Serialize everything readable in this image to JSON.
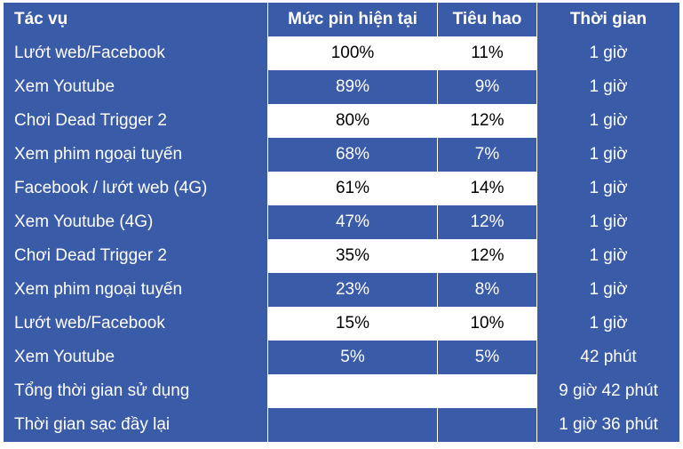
{
  "header": [
    "Tác vụ",
    "Mức pin hiện tại",
    "Tiêu hao",
    "Thời gian"
  ],
  "rows": [
    [
      "Lướt web/Facebook",
      "100%",
      "11%",
      "1 giờ"
    ],
    [
      "Xem Youtube",
      "89%",
      "9%",
      "1 giờ"
    ],
    [
      "Chơi Dead Trigger 2",
      "80%",
      "12%",
      "1 giờ"
    ],
    [
      "Xem phim ngoại tuyến",
      "68%",
      "7%",
      "1 giờ"
    ],
    [
      "Facebook / lướt web (4G)",
      "61%",
      "14%",
      "1 giờ"
    ],
    [
      "Xem Youtube (4G)",
      "47%",
      "12%",
      "1 giờ"
    ],
    [
      "Chơi Dead Trigger 2",
      "35%",
      "12%",
      "1 giờ"
    ],
    [
      "Xem phim ngoại tuyến",
      "23%",
      "8%",
      "1 giờ"
    ],
    [
      "Lướt web/Facebook",
      "15%",
      "10%",
      "1 giờ"
    ],
    [
      "Xem Youtube",
      "5%",
      "5%",
      "42 phút"
    ],
    [
      "Tổng thời gian sử dụng",
      "",
      "",
      "9 giờ 42 phút"
    ],
    [
      "Thời gian sạc đầy lại",
      "",
      "",
      "1 giờ 36 phút"
    ]
  ],
  "colors": {
    "blue": "#3a5ba8",
    "white": "#ffffff"
  }
}
